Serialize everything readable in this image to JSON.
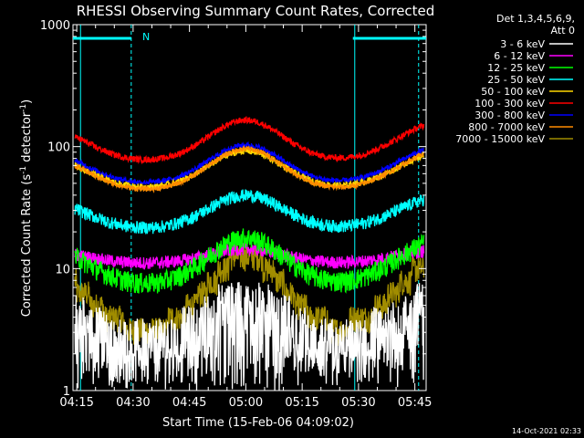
{
  "chart_data": {
    "type": "line",
    "title": "RHESSI Observing Summary Count Rates, Corrected",
    "xlabel": "Start Time (15-Feb-06 04:09:02)",
    "ylabel_main": "Corrected Count Rate (s",
    "ylabel_sup1": "-1",
    "ylabel_mid": " detector",
    "ylabel_sup2": "-1",
    "ylabel_end": ")",
    "yscale": "log",
    "ylim": [
      1,
      1000
    ],
    "xlim_minutes": [
      254,
      348
    ],
    "x_ticks": [
      "04:15",
      "04:30",
      "04:45",
      "05:00",
      "05:15",
      "05:30",
      "05:45"
    ],
    "x_tick_minutes": [
      255,
      270,
      285,
      300,
      315,
      330,
      345
    ],
    "y_ticks": [
      "1",
      "10",
      "100",
      "1000"
    ],
    "y_tick_values": [
      1,
      10,
      100,
      1000
    ],
    "legend_header": [
      "Det 1,3,4,5,6,9,",
      "Att 0"
    ],
    "annotation_N": "N",
    "night_bars": [
      [
        254,
        269.5
      ],
      [
        328.5,
        348
      ]
    ],
    "shading_lines_minutes": [
      256,
      269.5,
      329,
      346
    ],
    "timestamp": "14-Oct-2021 02:33",
    "series": [
      {
        "name": "3 - 6 keV",
        "color": "#ffffff",
        "profile": "low",
        "base": 2.3,
        "peak": 5.5,
        "noise": 0.55
      },
      {
        "name": "6 - 12 keV",
        "color": "#ff00ff",
        "profile": "mid",
        "base": 11,
        "peak": 14.5,
        "noise": 0.12
      },
      {
        "name": "12 - 25 keV",
        "color": "#00ff00",
        "profile": "mid",
        "base": 7.3,
        "peak": 18,
        "noise": 0.2
      },
      {
        "name": "25 - 50 keV",
        "color": "#00ffff",
        "profile": "mid",
        "base": 21,
        "peak": 40,
        "noise": 0.12
      },
      {
        "name": "50 - 100 keV",
        "color": "#ffd700",
        "profile": "mid",
        "base": 45,
        "peak": 92,
        "noise": 0.06
      },
      {
        "name": "100 - 300 keV",
        "color": "#ff0000",
        "profile": "mid",
        "base": 75,
        "peak": 165,
        "noise": 0.06
      },
      {
        "name": "300 - 800 keV",
        "color": "#0000ff",
        "profile": "mid",
        "base": 49,
        "peak": 103,
        "noise": 0.05
      },
      {
        "name": "800 - 7000 keV",
        "color": "#ff8c00",
        "profile": "mid",
        "base": 43,
        "peak": 96,
        "noise": 0.05
      },
      {
        "name": "7000 - 15000 keV",
        "color": "#a08c00",
        "profile": "step",
        "base": 3.0,
        "peak": 13,
        "noise": 0.25
      }
    ]
  }
}
